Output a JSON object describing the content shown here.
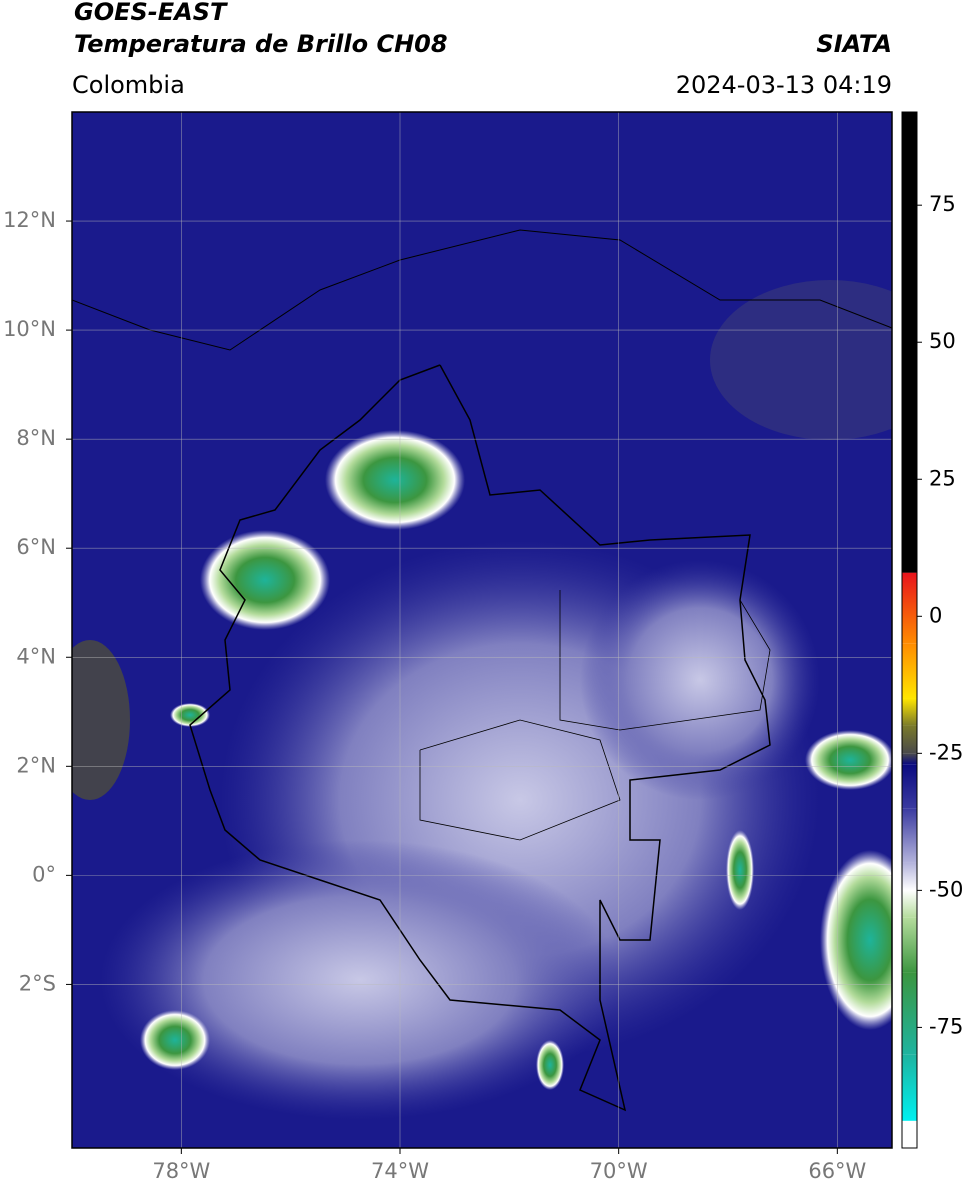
{
  "chart_data": {
    "type": "map",
    "title": "GOES-EAST",
    "subtitle": "Temperatura de Brillo CH08",
    "source": "SIATA",
    "region": "Colombia",
    "datetime": "2024-03-13 04:19",
    "xlim": [
      -80,
      -65
    ],
    "ylim": [
      -5,
      14
    ],
    "xticks": [
      {
        "value": -78,
        "label": "78°W"
      },
      {
        "value": -74,
        "label": "74°W"
      },
      {
        "value": -70,
        "label": "70°W"
      },
      {
        "value": -66,
        "label": "66°W"
      }
    ],
    "yticks": [
      {
        "value": 12,
        "label": "12°N"
      },
      {
        "value": 10,
        "label": "10°N"
      },
      {
        "value": 8,
        "label": "8°N"
      },
      {
        "value": 6,
        "label": "6°N"
      },
      {
        "value": 4,
        "label": "4°N"
      },
      {
        "value": 2,
        "label": "2°N"
      },
      {
        "value": 0,
        "label": "0°"
      },
      {
        "value": -2,
        "label": "2°S"
      }
    ],
    "grid": true,
    "colorbar": {
      "clim": [
        -97,
        92
      ],
      "ticks": [
        75,
        50,
        25,
        0,
        -25,
        -50,
        -75
      ],
      "stops": [
        {
          "value": 92,
          "color": "#000000"
        },
        {
          "value": 8,
          "color": "#000000"
        },
        {
          "value": 7.9,
          "color": "#e8141c"
        },
        {
          "value": -5,
          "color": "#ff8c00"
        },
        {
          "value": -15,
          "color": "#ffe600"
        },
        {
          "value": -20,
          "color": "#7a7a2a"
        },
        {
          "value": -25,
          "color": "#4a4a4a"
        },
        {
          "value": -27,
          "color": "#0a0a80"
        },
        {
          "value": -35,
          "color": "#3a3aa0"
        },
        {
          "value": -45,
          "color": "#b4b4dc"
        },
        {
          "value": -50,
          "color": "#ffffff"
        },
        {
          "value": -55,
          "color": "#b4dc9c"
        },
        {
          "value": -65,
          "color": "#3c9640"
        },
        {
          "value": -80,
          "color": "#1eb4a0"
        },
        {
          "value": -92,
          "color": "#00f0f0"
        },
        {
          "value": -92.1,
          "color": "#ffffff"
        },
        {
          "value": -97,
          "color": "#ffffff"
        }
      ]
    }
  }
}
